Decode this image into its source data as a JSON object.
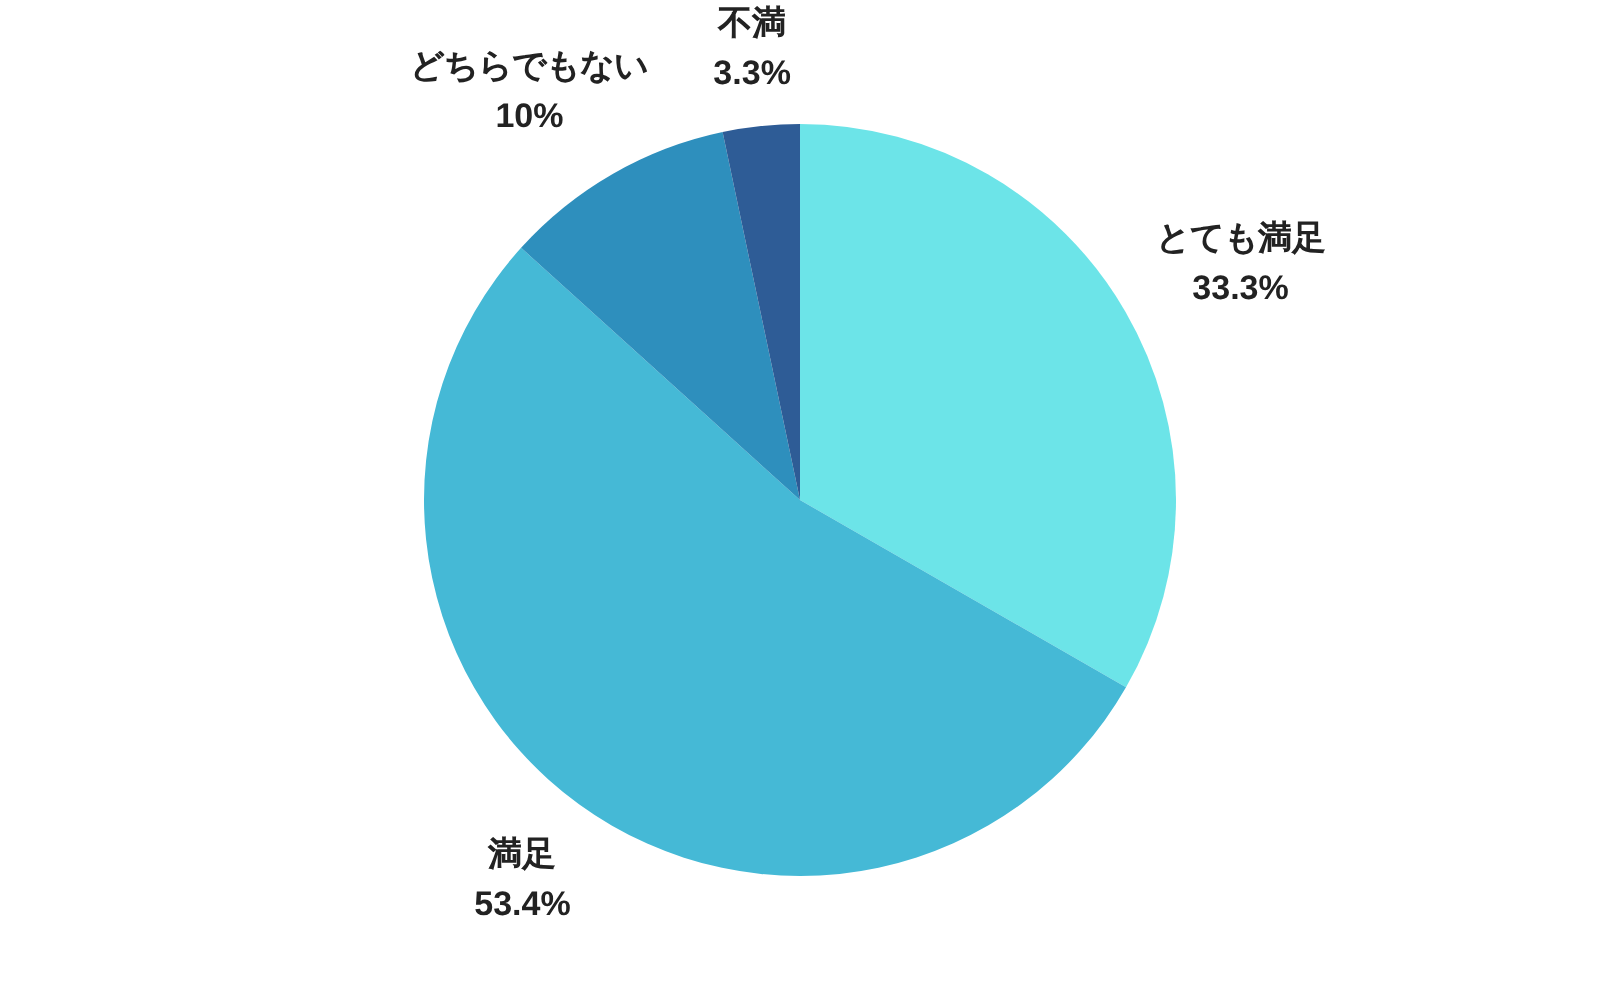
{
  "chart_data": {
    "type": "pie",
    "categories": [
      "とても満足",
      "満足",
      "どちらでもない",
      "不満"
    ],
    "values": [
      33.3,
      53.4,
      10,
      3.3
    ],
    "colors": [
      "#6ce4e8",
      "#45b9d6",
      "#2e8fbd",
      "#2e5c96"
    ],
    "value_labels": [
      "33.3%",
      "53.4%",
      "10%",
      "3.3%"
    ]
  }
}
